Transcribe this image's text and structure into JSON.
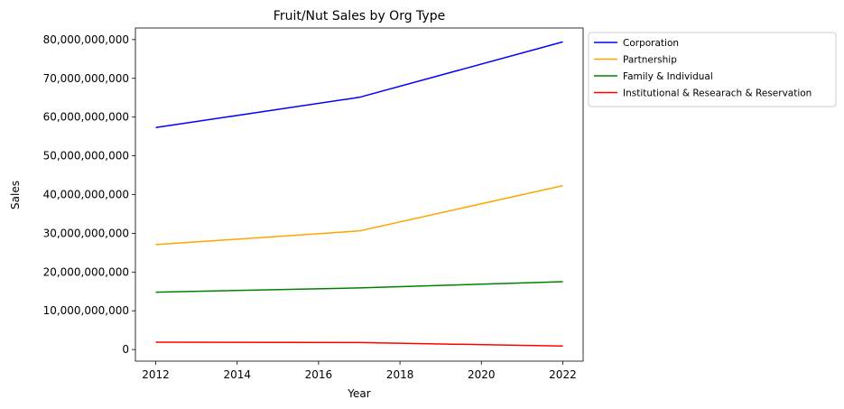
{
  "chart_data": {
    "type": "line",
    "title": "Fruit/Nut Sales by Org Type",
    "xlabel": "Year",
    "ylabel": "Sales",
    "xlim": [
      2011.5,
      2022.5
    ],
    "ylim": [
      -3000000000,
      83000000000
    ],
    "xticks": [
      2012,
      2014,
      2016,
      2018,
      2020,
      2022
    ],
    "yticks": [
      0,
      10000000000,
      20000000000,
      30000000000,
      40000000000,
      50000000000,
      60000000000,
      70000000000,
      80000000000
    ],
    "grid": false,
    "legend_position": "outside upper right",
    "x": [
      2012,
      2017,
      2022
    ],
    "series": [
      {
        "name": "Corporation",
        "color": "#0000ff",
        "values": [
          57300000000,
          65100000000,
          79400000000
        ]
      },
      {
        "name": "Partnership",
        "color": "#ffa500",
        "values": [
          27100000000,
          30600000000,
          42300000000
        ]
      },
      {
        "name": "Family & Individual",
        "color": "#008000",
        "values": [
          14800000000,
          15900000000,
          17500000000
        ]
      },
      {
        "name": "Institutional & Researach & Reservation",
        "color": "#ff0000",
        "values": [
          1900000000,
          1800000000,
          900000000
        ]
      }
    ]
  }
}
